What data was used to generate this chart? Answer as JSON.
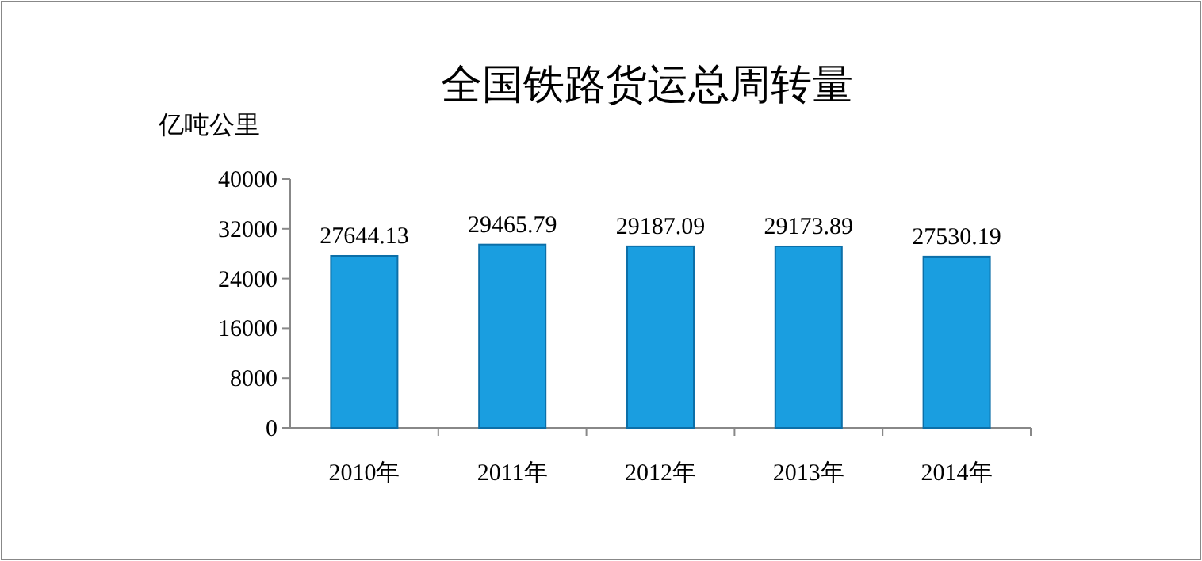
{
  "chart_data": {
    "type": "bar",
    "title": "全国铁路货运总周转量",
    "ylabel": "亿吨公里",
    "categories": [
      "2010年",
      "2011年",
      "2012年",
      "2013年",
      "2014年"
    ],
    "series": [
      {
        "color": "#1a9ee0",
        "values": [
          27644.13,
          29465.79,
          29187.09,
          29173.89,
          27530.19
        ]
      }
    ],
    "ylim": [
      0,
      40000
    ],
    "yticks": [
      0,
      8000,
      16000,
      24000,
      32000,
      40000
    ],
    "data_labels": true
  }
}
